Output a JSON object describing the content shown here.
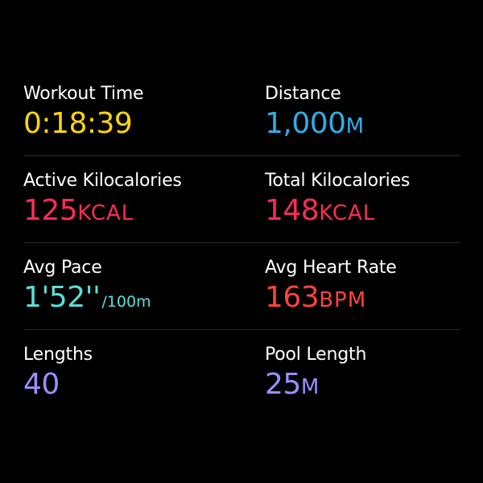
{
  "metrics": {
    "workout_time": {
      "label": "Workout Time",
      "value": "0:18:39",
      "unit": "",
      "color": "#FFD60A"
    },
    "distance": {
      "label": "Distance",
      "value": "1,000",
      "unit": "M",
      "color": "#32ADE6"
    },
    "active_kcal": {
      "label": "Active Kilocalories",
      "value": "125",
      "unit": "KCAL",
      "color": "#FF2D55"
    },
    "total_kcal": {
      "label": "Total Kilocalories",
      "value": "148",
      "unit": "KCAL",
      "color": "#FF2D55"
    },
    "avg_pace": {
      "label": "Avg Pace",
      "value": "1'52''",
      "unit": "/100m",
      "color": "#5AE0D6"
    },
    "avg_heart_rate": {
      "label": "Avg Heart Rate",
      "value": "163",
      "unit": "BPM",
      "color": "#FF453A"
    },
    "lengths": {
      "label": "Lengths",
      "value": "40",
      "unit": "",
      "color": "#A18CFF"
    },
    "pool_length": {
      "label": "Pool Length",
      "value": "25",
      "unit": "M",
      "color": "#A18CFF"
    }
  }
}
